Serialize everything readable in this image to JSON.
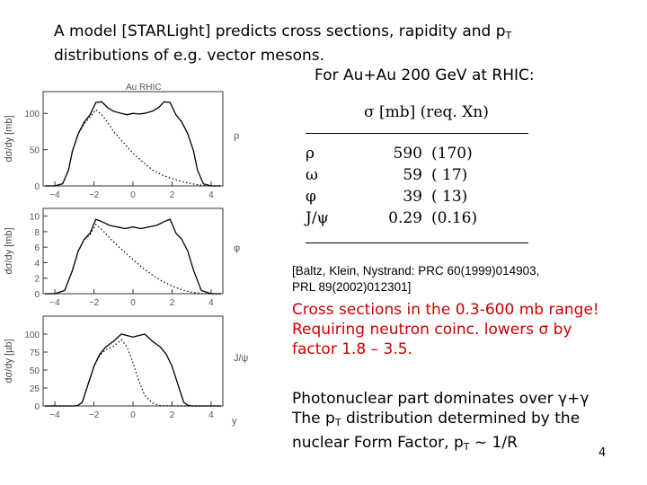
{
  "title": {
    "line1_main": "A model [STARLight] predicts cross sections, rapidity and p",
    "line1_sub": "T",
    "line2": "distributions of e.g. vector mesons.",
    "line3": "For Au+Au 200 GeV at RHIC:"
  },
  "plots": [
    {
      "top_label": "Au RHIC",
      "ylabel": "dσ/dy [mb]",
      "yticks": [
        "100",
        "50",
        "0"
      ],
      "yvalues": [
        100,
        50,
        0
      ],
      "ymax": 130,
      "xticks": [
        "-4",
        "-2",
        "0",
        "2",
        "4"
      ],
      "meson_label": "ρ",
      "total": [
        [
          -4.5,
          0
        ],
        [
          -4,
          0
        ],
        [
          -3.6,
          3
        ],
        [
          -3.3,
          22
        ],
        [
          -3.1,
          48
        ],
        [
          -2.8,
          72
        ],
        [
          -2.5,
          88
        ],
        [
          -2.2,
          98
        ],
        [
          -1.9,
          115
        ],
        [
          -1.6,
          116
        ],
        [
          -1.3,
          108
        ],
        [
          -1.0,
          103
        ],
        [
          -0.6,
          100
        ],
        [
          -0.3,
          98
        ],
        [
          0.0,
          100
        ],
        [
          0.3,
          99
        ],
        [
          0.6,
          100
        ],
        [
          1.0,
          103
        ],
        [
          1.3,
          108
        ],
        [
          1.6,
          116
        ],
        [
          1.9,
          115
        ],
        [
          2.2,
          98
        ],
        [
          2.5,
          88
        ],
        [
          2.8,
          72
        ],
        [
          3.1,
          48
        ],
        [
          3.3,
          22
        ],
        [
          3.6,
          3
        ],
        [
          4,
          0
        ],
        [
          4.5,
          0
        ]
      ],
      "partial": [
        [
          -4.5,
          0
        ],
        [
          -4,
          0
        ],
        [
          -3.6,
          3
        ],
        [
          -3.3,
          22
        ],
        [
          -3.1,
          48
        ],
        [
          -2.8,
          72
        ],
        [
          -2.5,
          85
        ],
        [
          -2.2,
          95
        ],
        [
          -1.9,
          105
        ],
        [
          -1.6,
          98
        ],
        [
          -1.3,
          88
        ],
        [
          -1.0,
          75
        ],
        [
          -0.5,
          60
        ],
        [
          0,
          45
        ],
        [
          0.5,
          33
        ],
        [
          1.0,
          22
        ],
        [
          1.5,
          15
        ],
        [
          2.0,
          10
        ],
        [
          2.5,
          6
        ],
        [
          3.0,
          3
        ],
        [
          3.5,
          1
        ],
        [
          4,
          0
        ],
        [
          4.5,
          0
        ]
      ]
    },
    {
      "top_label": "",
      "ylabel": "dσ/dy [mb]",
      "yticks": [
        "10",
        "8",
        "6",
        "4",
        "2",
        "0"
      ],
      "yvalues": [
        10,
        8,
        6,
        4,
        2,
        0
      ],
      "ymax": 11,
      "xticks": [
        "-4",
        "-2",
        "0",
        "2",
        "4"
      ],
      "meson_label": "φ",
      "total": [
        [
          -4.5,
          0
        ],
        [
          -4,
          0
        ],
        [
          -3.5,
          0.4
        ],
        [
          -3.1,
          3
        ],
        [
          -2.8,
          5.5
        ],
        [
          -2.5,
          7
        ],
        [
          -2.2,
          7.8
        ],
        [
          -1.9,
          9.6
        ],
        [
          -1.6,
          9.3
        ],
        [
          -1.2,
          8.8
        ],
        [
          -0.8,
          8.6
        ],
        [
          -0.4,
          8.4
        ],
        [
          0,
          8.6
        ],
        [
          0.4,
          8.4
        ],
        [
          0.8,
          8.6
        ],
        [
          1.2,
          8.8
        ],
        [
          1.6,
          9.3
        ],
        [
          1.9,
          9.6
        ],
        [
          2.2,
          7.8
        ],
        [
          2.5,
          7
        ],
        [
          2.8,
          5.5
        ],
        [
          3.1,
          3
        ],
        [
          3.5,
          0.4
        ],
        [
          4,
          0
        ],
        [
          4.5,
          0
        ]
      ],
      "partial": [
        [
          -4.5,
          0
        ],
        [
          -4,
          0
        ],
        [
          -3.5,
          0.4
        ],
        [
          -3.1,
          3
        ],
        [
          -2.8,
          5.5
        ],
        [
          -2.5,
          7
        ],
        [
          -2.2,
          7.6
        ],
        [
          -1.9,
          8.9
        ],
        [
          -1.6,
          8.3
        ],
        [
          -1.2,
          7.2
        ],
        [
          -0.8,
          6.2
        ],
        [
          -0.4,
          5.3
        ],
        [
          0,
          4.4
        ],
        [
          0.5,
          3.3
        ],
        [
          1.0,
          2.4
        ],
        [
          1.5,
          1.6
        ],
        [
          2.0,
          1.0
        ],
        [
          2.5,
          0.5
        ],
        [
          3.0,
          0.2
        ],
        [
          3.5,
          0
        ],
        [
          4,
          0
        ],
        [
          4.5,
          0
        ]
      ]
    },
    {
      "top_label": "",
      "ylabel": "dσ/dy [µb]",
      "yticks": [
        "100",
        "75",
        "50",
        "25",
        "0"
      ],
      "yvalues": [
        100,
        75,
        50,
        25,
        0
      ],
      "ymax": 125,
      "xticks": [
        "-4",
        "-2",
        "0",
        "2",
        "4"
      ],
      "xlabel": "y",
      "meson_label": "J/ψ",
      "total": [
        [
          -4.5,
          0
        ],
        [
          -3,
          0
        ],
        [
          -2.8,
          1
        ],
        [
          -2.6,
          5
        ],
        [
          -2.3,
          30
        ],
        [
          -2.0,
          55
        ],
        [
          -1.7,
          72
        ],
        [
          -1.4,
          82
        ],
        [
          -1.0,
          90
        ],
        [
          -0.6,
          100
        ],
        [
          -0.3,
          98
        ],
        [
          0,
          96
        ],
        [
          0.3,
          98
        ],
        [
          0.6,
          100
        ],
        [
          1.0,
          90
        ],
        [
          1.4,
          82
        ],
        [
          1.7,
          72
        ],
        [
          2.0,
          55
        ],
        [
          2.3,
          30
        ],
        [
          2.6,
          5
        ],
        [
          2.8,
          1
        ],
        [
          3,
          0
        ],
        [
          4.5,
          0
        ]
      ],
      "partial": [
        [
          -4.5,
          0
        ],
        [
          -3,
          0
        ],
        [
          -2.8,
          1
        ],
        [
          -2.6,
          5
        ],
        [
          -2.3,
          30
        ],
        [
          -2.0,
          55
        ],
        [
          -1.7,
          70
        ],
        [
          -1.4,
          78
        ],
        [
          -1.0,
          83
        ],
        [
          -0.6,
          92
        ],
        [
          -0.3,
          82
        ],
        [
          0,
          60
        ],
        [
          0.3,
          35
        ],
        [
          0.6,
          15
        ],
        [
          1.0,
          4
        ],
        [
          1.4,
          0.5
        ],
        [
          2,
          0
        ],
        [
          4.5,
          0
        ]
      ]
    }
  ],
  "table": {
    "header": "σ [mb]  (req. Xn)",
    "rows": [
      {
        "meson": "ρ",
        "sigma": "590",
        "req": "(170)"
      },
      {
        "meson": "ω",
        "sigma": "59",
        "req": "( 17)"
      },
      {
        "meson": "φ",
        "sigma": "39",
        "req": "( 13)"
      },
      {
        "meson": "J/ψ",
        "sigma": "0.29",
        "req": "(0.16)"
      }
    ]
  },
  "reference": {
    "line1": "[Baltz, Klein, Nystrand: PRC 60(1999)014903,",
    "line2": "PRL 89(2002)012301]"
  },
  "red_text": {
    "line1": "Cross sections in the 0.3-600 mb range!",
    "line2": "Requiring neutron coinc. lowers σ by",
    "line3": "factor 1.8 – 3.5."
  },
  "photonuclear": {
    "line1": "Photonuclear part dominates over γ+γ",
    "line2_pre": "The p",
    "line2_sub": "T",
    "line2_post": " distribution determined by the",
    "line3_pre": "nuclear Form Factor, p",
    "line3_sub": "T",
    "line3_post": " ~ 1/R"
  },
  "page_number": "4"
}
